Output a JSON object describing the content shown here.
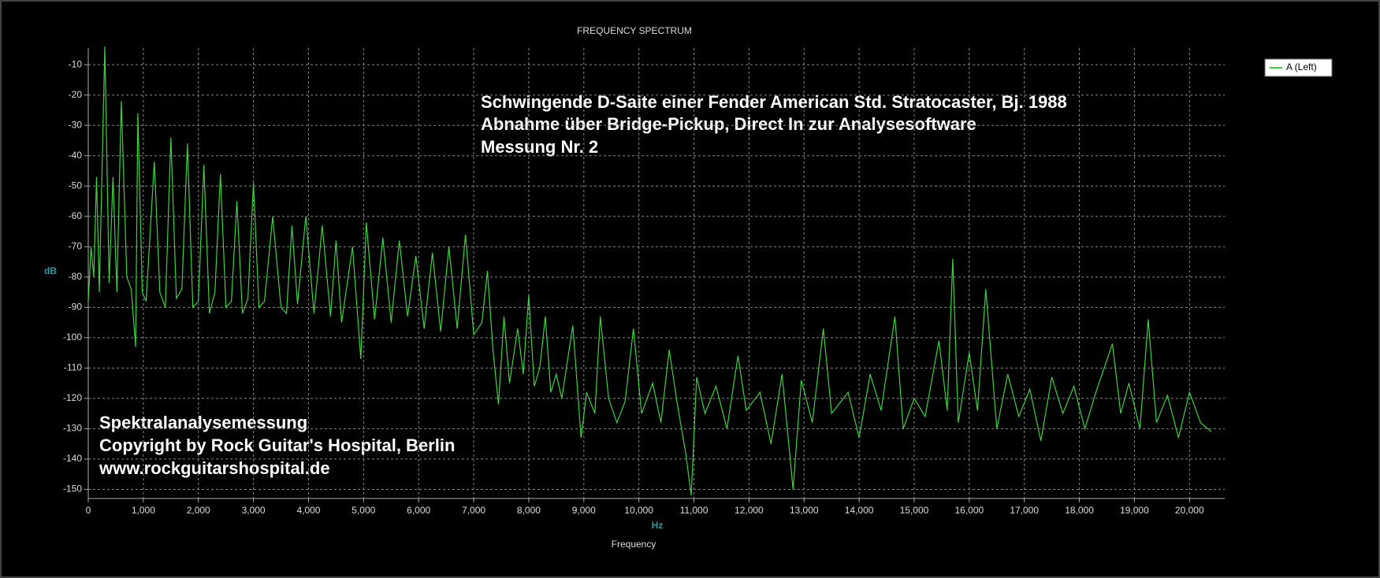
{
  "chart_data": {
    "type": "line",
    "title": "FREQUENCY SPECTRUM",
    "x_label": "Frequency",
    "x_unit": "Hz",
    "y_label": "dB",
    "annotations": [
      "Schwingende D-Saite einer Fender American Std. Stratocaster, Bj. 1988",
      "Abnahme über Bridge-Pickup, Direct In zur Analysesoftware",
      "Messung Nr. 2",
      "Spektralanalysemessung",
      "Copyright by Rock Guitar's Hospital, Berlin",
      "www.rockguitarshospital.de"
    ],
    "x": [
      0,
      50,
      100,
      150,
      200,
      300,
      380,
      450,
      520,
      600,
      700,
      780,
      860,
      900,
      980,
      1050,
      1200,
      1300,
      1400,
      1500,
      1600,
      1700,
      1800,
      1900,
      2000,
      2100,
      2200,
      2300,
      2400,
      2500,
      2600,
      2700,
      2800,
      2900,
      3000,
      3100,
      3200,
      3350,
      3500,
      3600,
      3700,
      3800,
      3950,
      4100,
      4250,
      4400,
      4500,
      4600,
      4800,
      4950,
      5050,
      5200,
      5350,
      5500,
      5650,
      5800,
      5950,
      6100,
      6250,
      6400,
      6550,
      6700,
      6850,
      7000,
      7150,
      7250,
      7350,
      7450,
      7550,
      7650,
      7800,
      7900,
      8000,
      8100,
      8200,
      8300,
      8400,
      8500,
      8600,
      8800,
      8950,
      9050,
      9200,
      9300,
      9450,
      9600,
      9750,
      9900,
      10050,
      10250,
      10400,
      10550,
      10700,
      10850,
      10950,
      11050,
      11200,
      11400,
      11600,
      11800,
      11950,
      12200,
      12400,
      12600,
      12800,
      12950,
      13150,
      13350,
      13500,
      13800,
      14000,
      14200,
      14400,
      14650,
      14800,
      15000,
      15200,
      15450,
      15600,
      15700,
      15800,
      16000,
      16150,
      16300,
      16500,
      16700,
      16900,
      17100,
      17300,
      17500,
      17700,
      17900,
      18100,
      18300,
      18600,
      18750,
      18900,
      19100,
      19250,
      19400,
      19600,
      19800,
      20000,
      20200,
      20400
    ],
    "series": [
      {
        "name": "A (Left)",
        "color": "#3fd13f",
        "values": [
          -88,
          -70,
          -80,
          -47,
          -85,
          -4,
          -82,
          -47,
          -85,
          -22,
          -80,
          -84,
          -103,
          -26,
          -85,
          -88,
          -42,
          -85,
          -90,
          -34,
          -87,
          -84,
          -36,
          -90,
          -88,
          -43,
          -92,
          -85,
          -46,
          -90,
          -88,
          -55,
          -92,
          -87,
          -49,
          -90,
          -88,
          -60,
          -90,
          -92,
          -63,
          -89,
          -60,
          -92,
          -63,
          -93,
          -68,
          -95,
          -70,
          -107,
          -62,
          -94,
          -67,
          -95,
          -68,
          -93,
          -73,
          -97,
          -72,
          -98,
          -70,
          -97,
          -66,
          -99,
          -95,
          -78,
          -104,
          -122,
          -93,
          -115,
          -97,
          -112,
          -86,
          -116,
          -110,
          -93,
          -118,
          -112,
          -120,
          -96,
          -133,
          -118,
          -125,
          -93,
          -120,
          -128,
          -121,
          -97,
          -125,
          -115,
          -128,
          -104,
          -122,
          -138,
          -152,
          -113,
          -125,
          -116,
          -130,
          -106,
          -124,
          -118,
          -135,
          -112,
          -150,
          -114,
          -128,
          -97,
          -125,
          -118,
          -133,
          -112,
          -124,
          -93,
          -130,
          -120,
          -126,
          -101,
          -124,
          -74,
          -128,
          -105,
          -124,
          -84,
          -130,
          -112,
          -126,
          -117,
          -134,
          -113,
          -125,
          -116,
          -130,
          -118,
          -102,
          -125,
          -115,
          -130,
          -94,
          -128,
          -119,
          -133,
          -118,
          -128,
          -131
        ]
      }
    ],
    "xlim": [
      0,
      20640
    ],
    "ylim": [
      -153,
      -4.5
    ],
    "xticks": [
      0,
      {
        "value": 1000,
        "label": "1,000"
      },
      {
        "value": 2000,
        "label": "2,000"
      },
      {
        "value": 3000,
        "label": "3,000"
      },
      {
        "value": 4000,
        "label": "4,000"
      },
      {
        "value": 5000,
        "label": "5,000"
      },
      {
        "value": 6000,
        "label": "6,000"
      },
      {
        "value": 7000,
        "label": "7,000"
      },
      {
        "value": 8000,
        "label": "8,000"
      },
      {
        "value": 9000,
        "label": "9,000"
      },
      {
        "value": 10000,
        "label": "10,000"
      },
      {
        "value": 11000,
        "label": "11,000"
      },
      {
        "value": 12000,
        "label": "12,000"
      },
      {
        "value": 13000,
        "label": "13,000"
      },
      {
        "value": 14000,
        "label": "14,000"
      },
      {
        "value": 15000,
        "label": "15,000"
      },
      {
        "value": 16000,
        "label": "16,000"
      },
      {
        "value": 17000,
        "label": "17,000"
      },
      {
        "value": 18000,
        "label": "18,000"
      },
      {
        "value": 19000,
        "label": "19,000"
      },
      {
        "value": 20000,
        "label": "20,000"
      }
    ],
    "yticks": [
      -150,
      -140,
      -130,
      -120,
      -110,
      -100,
      -90,
      -80,
      -70,
      -60,
      -50,
      -40,
      -30,
      -20,
      -10
    ],
    "grid": true
  }
}
